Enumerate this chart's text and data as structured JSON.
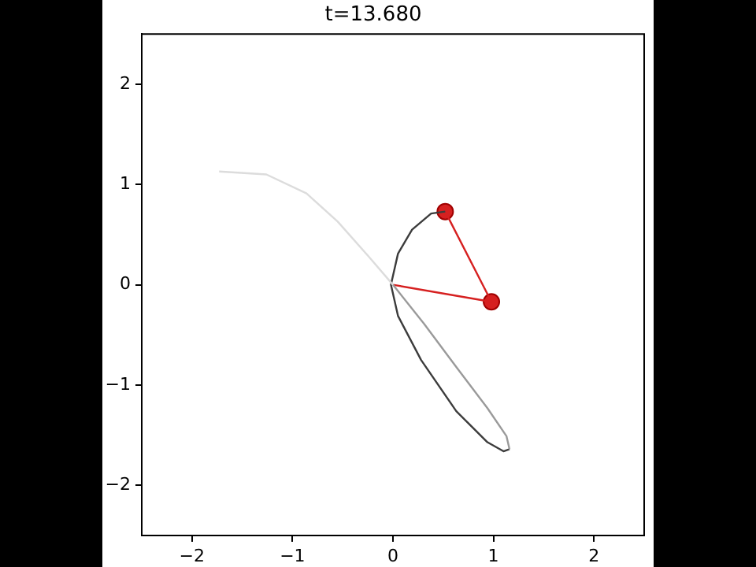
{
  "chart_data": {
    "type": "line",
    "title": "t=13.680",
    "xlim": [
      -2.5,
      2.5
    ],
    "ylim": [
      -2.5,
      2.5
    ],
    "xticks": [
      -2,
      -1,
      0,
      1,
      2
    ],
    "yticks": [
      -2,
      -1,
      0,
      1,
      2
    ],
    "grid": false,
    "legend": false,
    "series": [
      {
        "color": "#dcdcdc",
        "marker": "none",
        "x": [
          -1.73,
          -1.26,
          -0.86,
          -0.55,
          -0.24,
          0
        ],
        "values": [
          1.13,
          1.1,
          0.91,
          0.63,
          0.28,
          0
        ]
      },
      {
        "color": "#9a9a9a",
        "marker": "none",
        "x": [
          0,
          0.31,
          0.63,
          0.94,
          1.13,
          1.16
        ],
        "values": [
          0,
          -0.39,
          -0.82,
          -1.23,
          -1.51,
          -1.64
        ]
      },
      {
        "color": "#3c3c3c",
        "marker": "none",
        "x": [
          1.16,
          1.1,
          0.94,
          0.63,
          0.28,
          0.05,
          -0.02,
          0.05,
          0.19,
          0.38,
          0.52
        ],
        "values": [
          -1.64,
          -1.66,
          -1.57,
          -1.26,
          -0.75,
          -0.31,
          0,
          0.31,
          0.55,
          0.71,
          0.73
        ]
      },
      {
        "color": "#d62020",
        "marker": "none",
        "x": [
          0,
          0.98,
          0.52
        ],
        "values": [
          0,
          -0.17,
          0.73
        ]
      },
      {
        "type": "scatter",
        "color": "#d62020",
        "marker": "circle",
        "x": [
          0.98,
          0.52
        ],
        "values": [
          -0.17,
          0.73
        ]
      }
    ]
  }
}
